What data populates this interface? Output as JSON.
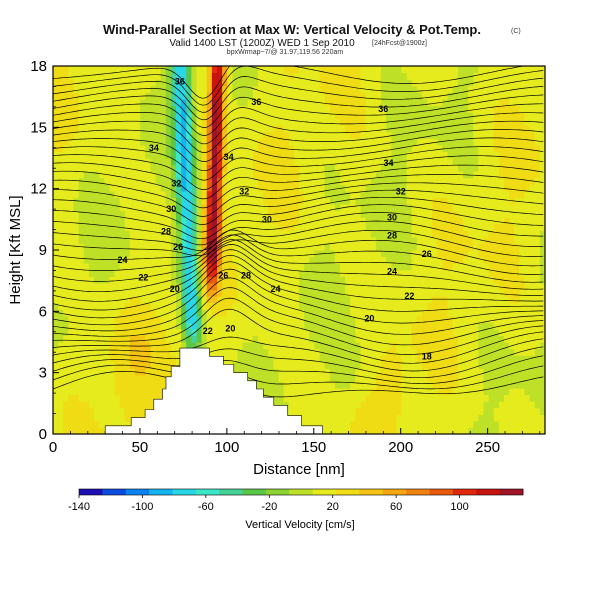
{
  "title": {
    "line1": "Wind-Parallel Section at Max W: Vertical Velocity & Pot.Temp.",
    "copyright": "(C)",
    "line2": "Valid 1400 LST (1200Z) WED 1 Sep 2010",
    "line2_suffix": "[24hFcst@1900z]",
    "line3": "bpxWrmap~7/@ 31.97,119.56 220am"
  },
  "chart_data": {
    "type": "heatmap",
    "xlabel": "Distance [nm]",
    "ylabel": "Height [Kft MSL]",
    "xlim": [
      0,
      283
    ],
    "ylim": [
      0,
      18
    ],
    "xticks": [
      0,
      50,
      100,
      150,
      200,
      250
    ],
    "yticks": [
      0,
      3,
      6,
      9,
      12,
      15,
      18
    ],
    "colorbar": {
      "label": "Vertical Velocity [cm/s]",
      "range": [
        -140,
        140
      ],
      "tick_values": [
        -140,
        -100,
        -60,
        -20,
        20,
        60,
        100
      ],
      "tick_labels": [
        "-140",
        "-100",
        "-60",
        "-20",
        "20",
        "60",
        "100"
      ],
      "colors": [
        "#1e0fb4",
        "#0a4be0",
        "#0a82f0",
        "#14b4f0",
        "#28d7e6",
        "#3ce6c8",
        "#46d296",
        "#5ac846",
        "#8cd232",
        "#bee128",
        "#e6eb1e",
        "#f0dc14",
        "#f5c314",
        "#f5a50f",
        "#f0820f",
        "#eb5a0a",
        "#e1280a",
        "#c8140f",
        "#a01428"
      ]
    },
    "contours": {
      "label_values": [
        36,
        34,
        32,
        30,
        28,
        26,
        24,
        22,
        20,
        18
      ],
      "placed_labels": [
        {
          "x": 73,
          "y": 17.25,
          "text": "36"
        },
        {
          "x": 117,
          "y": 16.25,
          "text": "36"
        },
        {
          "x": 190,
          "y": 15.9,
          "text": "36"
        },
        {
          "x": 58,
          "y": 14.0,
          "text": "34"
        },
        {
          "x": 101,
          "y": 13.55,
          "text": "34"
        },
        {
          "x": 193,
          "y": 13.25,
          "text": "34"
        },
        {
          "x": 71,
          "y": 12.25,
          "text": "32"
        },
        {
          "x": 110,
          "y": 11.85,
          "text": "32"
        },
        {
          "x": 200,
          "y": 11.85,
          "text": "32"
        },
        {
          "x": 68,
          "y": 11.0,
          "text": "30"
        },
        {
          "x": 123,
          "y": 10.5,
          "text": "30"
        },
        {
          "x": 195,
          "y": 10.6,
          "text": "30"
        },
        {
          "x": 65,
          "y": 9.9,
          "text": "28"
        },
        {
          "x": 195,
          "y": 9.7,
          "text": "28"
        },
        {
          "x": 72,
          "y": 9.15,
          "text": "26"
        },
        {
          "x": 215,
          "y": 8.8,
          "text": "26"
        },
        {
          "x": 40,
          "y": 8.5,
          "text": "24"
        },
        {
          "x": 195,
          "y": 7.95,
          "text": "24"
        },
        {
          "x": 52,
          "y": 7.65,
          "text": "22"
        },
        {
          "x": 98,
          "y": 7.75,
          "text": "26"
        },
        {
          "x": 111,
          "y": 7.75,
          "text": "28"
        },
        {
          "x": 128,
          "y": 7.1,
          "text": "24"
        },
        {
          "x": 70,
          "y": 7.1,
          "text": "20"
        },
        {
          "x": 205,
          "y": 6.75,
          "text": "22"
        },
        {
          "x": 182,
          "y": 5.65,
          "text": "20"
        },
        {
          "x": 89,
          "y": 5.05,
          "text": "22"
        },
        {
          "x": 102,
          "y": 5.15,
          "text": "20"
        },
        {
          "x": 215,
          "y": 3.8,
          "text": "18"
        }
      ]
    },
    "terrain_steps": [
      [
        0,
        0
      ],
      [
        30,
        0
      ],
      [
        30,
        0.4
      ],
      [
        45,
        0.4
      ],
      [
        45,
        0.8
      ],
      [
        53,
        0.8
      ],
      [
        53,
        1.2
      ],
      [
        58,
        1.2
      ],
      [
        58,
        1.7
      ],
      [
        63,
        1.7
      ],
      [
        63,
        2.2
      ],
      [
        65,
        2.2
      ],
      [
        65,
        2.8
      ],
      [
        68,
        2.8
      ],
      [
        68,
        3.3
      ],
      [
        73,
        3.3
      ],
      [
        73,
        4.2
      ],
      [
        90,
        4.2
      ],
      [
        90,
        3.8
      ],
      [
        98,
        3.8
      ],
      [
        98,
        3.4
      ],
      [
        104,
        3.4
      ],
      [
        104,
        3.0
      ],
      [
        112,
        3.0
      ],
      [
        112,
        2.6
      ],
      [
        117,
        2.6
      ],
      [
        117,
        2.2
      ],
      [
        121,
        2.2
      ],
      [
        121,
        1.8
      ],
      [
        127,
        1.8
      ],
      [
        127,
        1.4
      ],
      [
        135,
        1.4
      ],
      [
        135,
        0.9
      ],
      [
        143,
        0.9
      ],
      [
        143,
        0.4
      ],
      [
        155,
        0.4
      ],
      [
        155,
        0
      ],
      [
        283,
        0
      ]
    ]
  }
}
